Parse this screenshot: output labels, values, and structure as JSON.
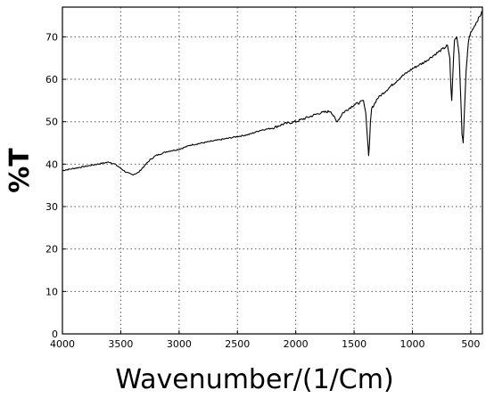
{
  "chart_data": {
    "type": "line",
    "xlabel": "Wavenumber/(1/Cm)",
    "ylabel": "%T",
    "xlim": [
      4000,
      400
    ],
    "ylim": [
      0,
      77
    ],
    "x_reversed": true,
    "grid": true,
    "x_ticks": [
      4000,
      3500,
      3000,
      2500,
      2000,
      1500,
      1000,
      500
    ],
    "y_ticks": [
      0,
      10,
      20,
      30,
      40,
      50,
      60,
      70
    ],
    "series": [
      {
        "x": [
          4000,
          3900,
          3800,
          3700,
          3600,
          3550,
          3500,
          3450,
          3400,
          3350,
          3300,
          3250,
          3200,
          3100,
          3000,
          2900,
          2800,
          2700,
          2600,
          2500,
          2400,
          2300,
          2200,
          2100,
          2000,
          1900,
          1800,
          1700,
          1650,
          1620,
          1600,
          1550,
          1500,
          1450,
          1420,
          1400,
          1385,
          1375,
          1368,
          1360,
          1350,
          1300,
          1200,
          1100,
          1000,
          900,
          800,
          720,
          700,
          680,
          670,
          663,
          655,
          648,
          640,
          620,
          600,
          585,
          575,
          565,
          555,
          540,
          520,
          500,
          480,
          460,
          440,
          420,
          400
        ],
        "y": [
          38.5,
          39,
          39.5,
          40,
          40.5,
          40,
          39,
          38,
          37.5,
          38,
          39.5,
          41,
          42,
          43,
          43.5,
          44.5,
          45,
          45.5,
          46,
          46.5,
          47,
          48,
          48.5,
          49.5,
          50,
          51,
          52,
          52.5,
          50,
          51,
          52,
          53,
          54,
          54.5,
          55,
          52,
          46,
          42,
          45,
          50,
          53,
          55.5,
          58,
          60.5,
          62.5,
          64,
          66,
          67.5,
          68,
          65,
          58,
          55,
          60,
          65,
          69,
          70,
          66,
          55,
          47,
          45,
          52,
          62,
          69,
          71,
          72,
          73,
          74,
          75,
          76
        ]
      }
    ]
  }
}
